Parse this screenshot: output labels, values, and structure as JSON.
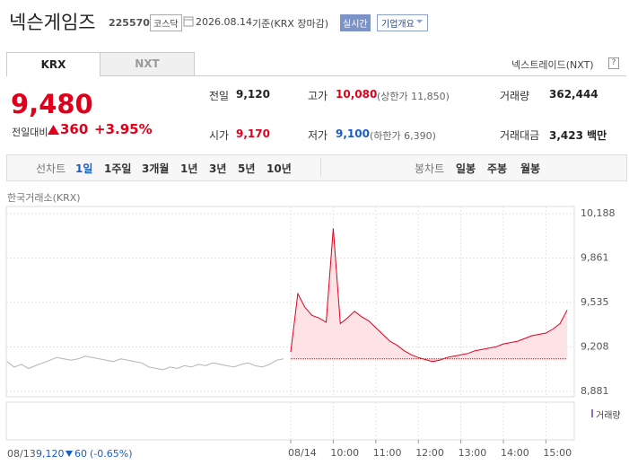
{
  "header": {
    "title": "넥슨게임즈",
    "code": "225570",
    "market": "코스닥",
    "date": "2026.08.14",
    "basis": "기준(KRX 장마감)",
    "realtime": "실시간",
    "company_info": "기업개요"
  },
  "tabs": {
    "krx": "KRX",
    "nxt": "NXT",
    "nextrade": "넥스트레이드(NXT)",
    "help": "?"
  },
  "quote": {
    "price": "9,480",
    "change_label": "전일대비",
    "change": "360",
    "rate": "+3.95%",
    "rows": [
      [
        {
          "label": "전일",
          "value": "9,120"
        },
        {
          "label": "고가",
          "value": "10,080",
          "note": "(상한가 11,850)"
        },
        {
          "label": "거래량",
          "value": "362,444"
        }
      ],
      [
        {
          "label": "시가",
          "value": "9,170"
        },
        {
          "label": "저가",
          "value": "9,100",
          "note": "(하한가 6,390)"
        },
        {
          "label": "거래대금",
          "value": "3,423 백만"
        }
      ]
    ]
  },
  "period": {
    "line_label": "선차트",
    "line": [
      "1일",
      "1주일",
      "3개월",
      "1년",
      "3년",
      "5년",
      "10년"
    ],
    "candle_label": "봉차트",
    "candle": [
      "일봉",
      "주봉",
      "월봉"
    ]
  },
  "source": "한국거래소(KRX)",
  "prev_day": {
    "close": "9,120",
    "change": "60",
    "rate": "(-0.65%)"
  },
  "volume_label": "거래량",
  "chart_data": {
    "type": "line",
    "categories": [
      "08/13",
      null,
      null,
      null,
      null,
      null,
      null,
      null,
      null,
      null,
      null,
      null,
      null,
      null,
      null,
      null,
      null,
      null,
      null,
      null,
      null,
      null,
      null,
      null,
      null,
      null,
      null,
      null,
      null,
      null,
      null,
      null,
      null,
      null,
      null,
      null,
      null,
      null,
      null,
      null,
      "08/14",
      null,
      null,
      null,
      null,
      null,
      "10:00",
      null,
      null,
      null,
      null,
      null,
      "11:00",
      null,
      null,
      null,
      null,
      null,
      "12:00",
      null,
      null,
      null,
      null,
      null,
      "13:00",
      null,
      null,
      null,
      null,
      null,
      "14:00",
      null,
      null,
      null,
      null,
      null,
      "15:00",
      null,
      null,
      null
    ],
    "series": [
      {
        "color": "#b5b5b5",
        "values": [
          9100,
          9060,
          9080,
          9050,
          9070,
          9090,
          9110,
          9130,
          9120,
          9110,
          9120,
          9140,
          9130,
          9120,
          9110,
          9100,
          9120,
          9110,
          9100,
          9090,
          9060,
          9050,
          9040,
          9060,
          9050,
          9070,
          9060,
          9080,
          9070,
          9090,
          9080,
          9070,
          9060,
          9080,
          9090,
          9070,
          9060,
          9080,
          9110,
          9120,
          null,
          null,
          null,
          null,
          null,
          null,
          null,
          null,
          null,
          null,
          null,
          null,
          null,
          null,
          null,
          null,
          null,
          null,
          null,
          null,
          null,
          null,
          null,
          null,
          null,
          null,
          null,
          null,
          null,
          null,
          null,
          null,
          null,
          null,
          null,
          null,
          null,
          null,
          null,
          null
        ]
      },
      {
        "color": "#e0001b",
        "fill": "#fde3e6",
        "values": [
          null,
          null,
          null,
          null,
          null,
          null,
          null,
          null,
          null,
          null,
          null,
          null,
          null,
          null,
          null,
          null,
          null,
          null,
          null,
          null,
          null,
          null,
          null,
          null,
          null,
          null,
          null,
          null,
          null,
          null,
          null,
          null,
          null,
          null,
          null,
          null,
          null,
          null,
          null,
          null,
          9170,
          9600,
          9500,
          9440,
          9420,
          9390,
          10080,
          9380,
          9420,
          9470,
          9430,
          9400,
          9350,
          9300,
          9250,
          9220,
          9180,
          9150,
          9130,
          9115,
          9100,
          9110,
          9130,
          9140,
          9150,
          9160,
          9180,
          9190,
          9200,
          9210,
          9230,
          9240,
          9250,
          9270,
          9290,
          9300,
          9310,
          9340,
          9380,
          9480
        ]
      }
    ],
    "baseline": 9120,
    "ylim": [
      8881,
      10188
    ],
    "yticks": [
      {
        "value": 8881,
        "label": "8,881"
      },
      {
        "value": 9208,
        "label": "9,208"
      },
      {
        "value": 9535,
        "label": "9,535"
      },
      {
        "value": 9861,
        "label": "9,861"
      },
      {
        "value": 10188,
        "label": "10,188"
      }
    ],
    "grid": true
  }
}
